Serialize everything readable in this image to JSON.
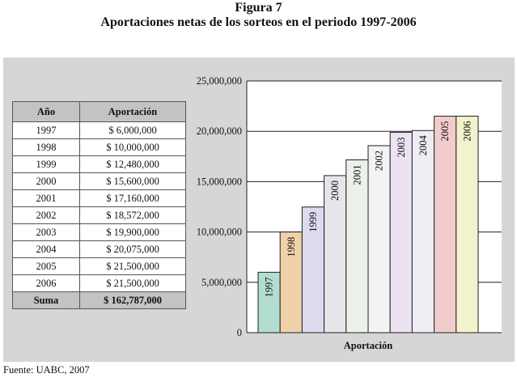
{
  "figure": {
    "label": "Figura 7",
    "title": "Aportaciones netas de los sorteos en el periodo 1997-2006",
    "source": "Fuente: UABC, 2007"
  },
  "table": {
    "headers": [
      "Año",
      "Aportación"
    ],
    "rows": [
      [
        "1997",
        "$ 6,000,000"
      ],
      [
        "1998",
        "$ 10,000,000"
      ],
      [
        "1999",
        "$ 12,480,000"
      ],
      [
        "2000",
        "$ 15,600,000"
      ],
      [
        "2001",
        "$ 17,160,000"
      ],
      [
        "2002",
        "$ 18,572,000"
      ],
      [
        "2003",
        "$ 19,900,000"
      ],
      [
        "2004",
        "$ 20,075,000"
      ],
      [
        "2005",
        "$ 21,500,000"
      ],
      [
        "2006",
        "$ 21,500,000"
      ]
    ],
    "total": [
      "Suma",
      "$ 162,787,000"
    ]
  },
  "chart_data": {
    "type": "bar",
    "title": "",
    "xlabel": "Aportación",
    "ylabel": "",
    "ylim": [
      0,
      25000000
    ],
    "grid": true,
    "yticks": [
      {
        "value": 0,
        "label": "0"
      },
      {
        "value": 5000000,
        "label": "5,000,000"
      },
      {
        "value": 10000000,
        "label": "10,000,000"
      },
      {
        "value": 15000000,
        "label": "15,000,000"
      },
      {
        "value": 20000000,
        "label": "20,000,000"
      },
      {
        "value": 25000000,
        "label": "25,000,000"
      }
    ],
    "categories": [
      "1997",
      "1998",
      "1999",
      "2000",
      "2001",
      "2002",
      "2003",
      "2004",
      "2005",
      "2006"
    ],
    "values": [
      6000000,
      10000000,
      12480000,
      15600000,
      17160000,
      18572000,
      19900000,
      20075000,
      21500000,
      21500000
    ],
    "colors": [
      "#b3ddd0",
      "#f0d2aa",
      "#dcdcee",
      "#e6e6ea",
      "#eaf2ea",
      "#f3f3f3",
      "#ece2f2",
      "#ededf3",
      "#f2cccc",
      "#f2f2cc"
    ]
  }
}
